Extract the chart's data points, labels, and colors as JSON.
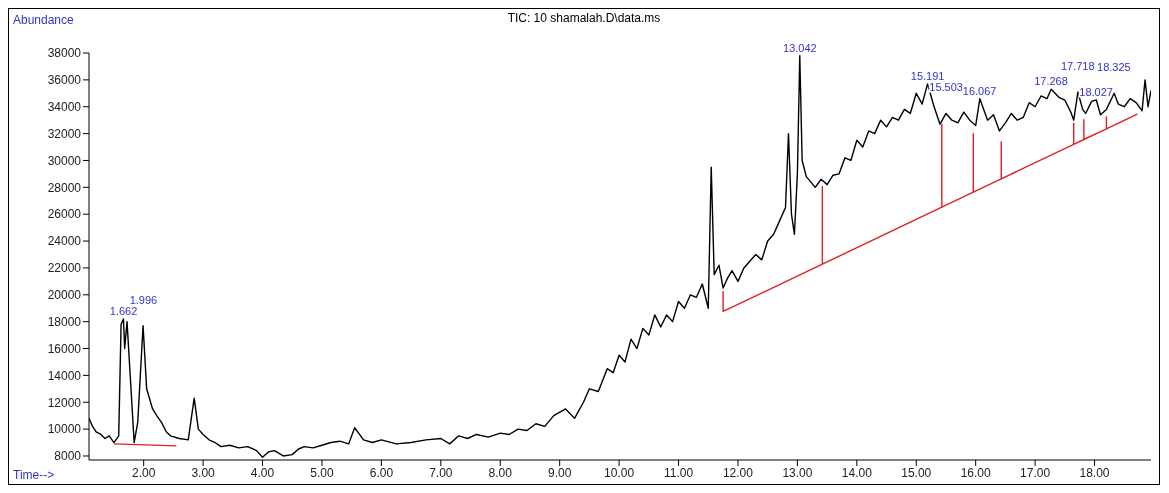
{
  "chart_data": {
    "type": "line",
    "title": "TIC: 10 shamalah.D\\data.ms",
    "xlabel": "Time-->",
    "ylabel": "Abundance",
    "xlim": [
      1.08,
      18.95
    ],
    "ylim": [
      7700,
      38000
    ],
    "xticks": [
      {
        "value": 2,
        "label": "2.00"
      },
      {
        "value": 3,
        "label": "3.00"
      },
      {
        "value": 4,
        "label": "4.00"
      },
      {
        "value": 5,
        "label": "5.00"
      },
      {
        "value": 6,
        "label": "6.00"
      },
      {
        "value": 7,
        "label": "7.00"
      },
      {
        "value": 8,
        "label": "8.00"
      },
      {
        "value": 9,
        "label": "9.00"
      },
      {
        "value": 10,
        "label": "10.00"
      },
      {
        "value": 11,
        "label": "11.00"
      },
      {
        "value": 12,
        "label": "12.00"
      },
      {
        "value": 13,
        "label": "13.00"
      },
      {
        "value": 14,
        "label": "14.00"
      },
      {
        "value": 15,
        "label": "15.00"
      },
      {
        "value": 16,
        "label": "16.00"
      },
      {
        "value": 17,
        "label": "17.00"
      },
      {
        "value": 18,
        "label": "18.00"
      }
    ],
    "yticks": [
      8000,
      10000,
      12000,
      14000,
      16000,
      18000,
      20000,
      22000,
      24000,
      26000,
      28000,
      30000,
      32000,
      34000,
      36000,
      38000
    ],
    "marker": "none",
    "line_style": "solid",
    "series": [
      {
        "color": "#000000",
        "x": [
          1.08,
          1.14,
          1.2,
          1.28,
          1.35,
          1.42,
          1.5,
          1.58,
          1.62,
          1.66,
          1.68,
          1.72,
          1.76,
          1.84,
          1.9,
          1.99,
          2.05,
          2.15,
          2.22,
          2.3,
          2.38,
          2.45,
          2.6,
          2.75,
          2.85,
          2.92,
          3.0,
          3.1,
          3.2,
          3.3,
          3.45,
          3.6,
          3.75,
          3.9,
          4.0,
          4.1,
          4.2,
          4.35,
          4.5,
          4.6,
          4.7,
          4.85,
          5.0,
          5.15,
          5.3,
          5.45,
          5.55,
          5.7,
          5.85,
          6.0,
          6.25,
          6.5,
          6.75,
          7.0,
          7.15,
          7.3,
          7.45,
          7.6,
          7.8,
          8.0,
          8.15,
          8.3,
          8.45,
          8.6,
          8.75,
          8.9,
          9.1,
          9.25,
          9.4,
          9.5,
          9.65,
          9.8,
          9.9,
          10.0,
          10.1,
          10.2,
          10.3,
          10.4,
          10.5,
          10.6,
          10.7,
          10.8,
          10.9,
          11.0,
          11.1,
          11.2,
          11.3,
          11.4,
          11.5,
          11.55,
          11.6,
          11.68,
          11.75,
          11.82,
          11.9,
          12.0,
          12.1,
          12.2,
          12.3,
          12.4,
          12.5,
          12.6,
          12.7,
          12.8,
          12.85,
          12.9,
          12.95,
          13.0,
          13.04,
          13.08,
          13.15,
          13.3,
          13.4,
          13.5,
          13.6,
          13.7,
          13.8,
          13.9,
          14.0,
          14.1,
          14.2,
          14.3,
          14.4,
          14.5,
          14.6,
          14.7,
          14.8,
          14.9,
          15.0,
          15.1,
          15.19,
          15.3,
          15.4,
          15.5,
          15.6,
          15.7,
          15.8,
          15.9,
          16.0,
          16.07,
          16.2,
          16.3,
          16.4,
          16.5,
          16.6,
          16.7,
          16.8,
          16.9,
          17.0,
          17.1,
          17.2,
          17.27,
          17.4,
          17.5,
          17.6,
          17.65,
          17.72,
          17.8,
          17.85,
          17.95,
          18.03,
          18.1,
          18.2,
          18.33,
          18.4,
          18.5,
          18.6,
          18.7,
          18.8,
          18.85,
          18.9,
          18.95
        ],
        "values": [
          10800,
          10200,
          9800,
          9600,
          9300,
          9500,
          9000,
          9500,
          17800,
          18200,
          16000,
          18000,
          15000,
          9000,
          10500,
          17700,
          13000,
          11500,
          11000,
          10500,
          9800,
          9500,
          9300,
          9200,
          12300,
          10000,
          9600,
          9200,
          9000,
          8700,
          8800,
          8600,
          8700,
          8400,
          7900,
          8300,
          8400,
          8000,
          8100,
          8500,
          8700,
          8600,
          8800,
          9000,
          9100,
          8900,
          10100,
          9200,
          9000,
          9200,
          8900,
          9000,
          9200,
          9300,
          8900,
          9500,
          9300,
          9600,
          9400,
          9700,
          9600,
          10000,
          9900,
          10400,
          10200,
          11000,
          11500,
          10800,
          12000,
          13000,
          12800,
          14500,
          14200,
          15500,
          15000,
          16700,
          16000,
          17500,
          17000,
          18500,
          17600,
          18500,
          18000,
          19500,
          19000,
          20000,
          19800,
          20800,
          19000,
          29500,
          21500,
          22200,
          20500,
          21200,
          21800,
          21000,
          22000,
          22500,
          23000,
          22600,
          24000,
          24500,
          25500,
          26500,
          32000,
          26000,
          24500,
          29000,
          37800,
          30000,
          28800,
          28000,
          28600,
          28200,
          28900,
          29000,
          30200,
          30000,
          31500,
          31000,
          32200,
          32000,
          33000,
          32500,
          33200,
          33000,
          33800,
          33500,
          35000,
          34200,
          35700,
          34000,
          32700,
          33500,
          33000,
          32800,
          33600,
          33000,
          32600,
          34600,
          33000,
          33400,
          32200,
          32800,
          33500,
          33000,
          33200,
          34300,
          34000,
          34800,
          34600,
          35300,
          34700,
          34500,
          33600,
          33000,
          35100,
          33800,
          33500,
          34400,
          34500,
          33400,
          33800,
          35000,
          34200,
          34000,
          34600,
          34300,
          33700,
          36000,
          34000,
          35200
        ]
      },
      {
        "color": "#e02020",
        "x": [
          1.5,
          2.55,
          null,
          11.75,
          11.75,
          13.42,
          13.42,
          13.42,
          15.43,
          15.43,
          15.43,
          15.96,
          15.96,
          15.96,
          16.43,
          16.43,
          16.43,
          17.65,
          17.65,
          17.65,
          17.82,
          17.82,
          17.82,
          18.2,
          18.2,
          18.2,
          18.72
        ],
        "values": [
          8900,
          8750,
          null,
          20280,
          18760,
          22280,
          28070,
          22280,
          26520,
          32690,
          26520,
          27640,
          32000,
          27640,
          28630,
          31380,
          28630,
          31200,
          32760,
          31200,
          31560,
          33030,
          31560,
          32360,
          33240,
          32360,
          33450
        ]
      }
    ],
    "annotations": [
      {
        "text": "1.662",
        "x": 1.662,
        "y": 18200
      },
      {
        "text": "1.996",
        "x": 1.996,
        "y": 17700
      },
      {
        "text": "13.042",
        "x": 13.042,
        "y": 37800
      },
      {
        "text": "15.191",
        "x": 15.191,
        "y": 35700
      },
      {
        "text": "15.503",
        "x": 15.503,
        "y": 33500
      },
      {
        "text": "16.067",
        "x": 16.067,
        "y": 34600
      },
      {
        "text": "17.268",
        "x": 17.268,
        "y": 35300
      },
      {
        "text": "17.718",
        "x": 17.718,
        "y": 35100
      },
      {
        "text": "18.027",
        "x": 18.027,
        "y": 34500
      },
      {
        "text": "18.325",
        "x": 18.325,
        "y": 35000
      }
    ]
  }
}
